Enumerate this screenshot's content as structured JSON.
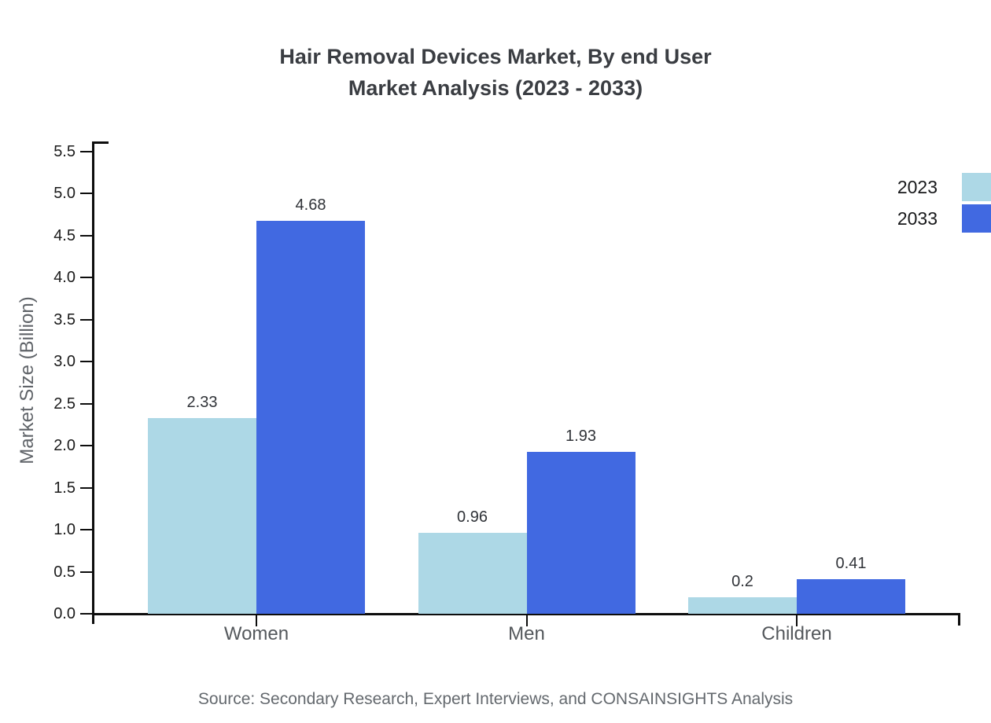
{
  "title": {
    "line1": "Hair Removal Devices Market, By end User",
    "line2": "Market Analysis (2023 - 2033)"
  },
  "source_note": "Source: Secondary Research, Expert Interviews, and CONSAINSIGHTS Analysis",
  "colors": {
    "series_2023": "#ADD8E6",
    "series_2033": "#4169E1",
    "axis": "#0d0d0d",
    "title_text": "#3a3d42",
    "muted_text": "#5f6368"
  },
  "chart_data": {
    "type": "bar",
    "title": "Hair Removal Devices Market, By end User Market Analysis (2023 - 2033)",
    "categories": [
      "Women",
      "Men",
      "Children"
    ],
    "series": [
      {
        "name": "2023",
        "color": "#ADD8E6",
        "values": [
          2.33,
          0.96,
          0.2
        ],
        "labels": [
          "2.33",
          "0.96",
          "0.2"
        ]
      },
      {
        "name": "2033",
        "color": "#4169E1",
        "values": [
          4.68,
          1.93,
          0.41
        ],
        "labels": [
          "4.68",
          "1.93",
          "0.41"
        ]
      }
    ],
    "xlabel": "",
    "ylabel": "Market Size (Billion)",
    "ylim": [
      0,
      5.5
    ],
    "ytick_step": 0.5,
    "ytick_labels": [
      "0.0",
      "0.5",
      "1.0",
      "1.5",
      "2.0",
      "2.5",
      "3.0",
      "3.5",
      "4.0",
      "4.5",
      "5.0",
      "5.5"
    ],
    "grid": false,
    "legend_position": "top-right",
    "value_labels_shown": true
  }
}
